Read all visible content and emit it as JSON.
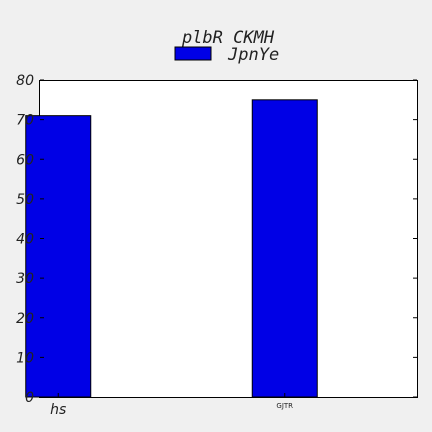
{
  "chart_data": {
    "type": "bar",
    "title": "plbR CKMH",
    "categories": [
      "hs",
      "GJTR"
    ],
    "series": [
      {
        "name": "JpnYe",
        "values": [
          71,
          75
        ],
        "color": "#0000e6"
      }
    ],
    "xlabel": "",
    "ylabel": "",
    "ylim": [
      0,
      80
    ],
    "yticks": [
      0,
      10,
      20,
      30,
      40,
      50,
      60,
      70,
      80
    ],
    "grid": false,
    "legend": "top-center"
  }
}
